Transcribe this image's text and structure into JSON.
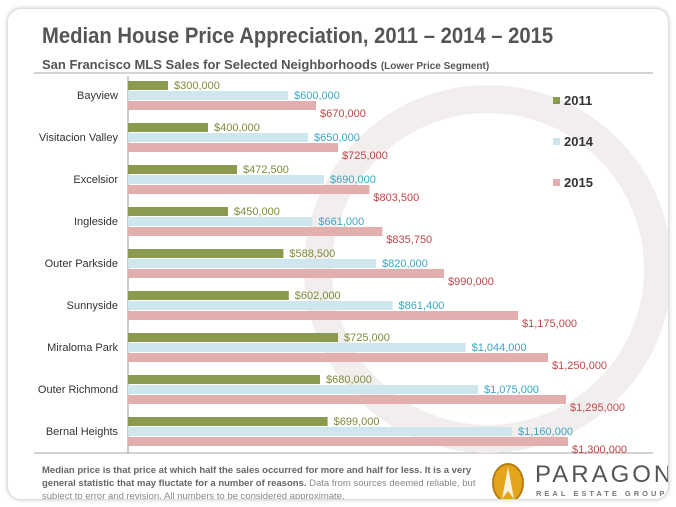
{
  "chart_data": {
    "type": "bar",
    "orientation": "horizontal",
    "title": "Median House Price Appreciation, 2011 – 2014 – 2015",
    "subtitle": "San Francisco MLS Sales for Selected Neighborhoods",
    "subtitle_note": "(Lower Price Segment)",
    "categories": [
      "Bayview",
      "Visitacion Valley",
      "Excelsior",
      "Ingleside",
      "Outer Parkside",
      "Sunnyside",
      "Miraloma Park",
      "Outer Richmond",
      "Bernal Heights"
    ],
    "series": [
      {
        "name": "2011",
        "color": "#8a9a4e",
        "values": [
          300000,
          400000,
          472500,
          450000,
          588500,
          602000,
          725000,
          680000,
          699000
        ],
        "labels": [
          "$300,000",
          "$400,000",
          "$472,500",
          "$450,000",
          "$588,500",
          "$602,000",
          "$725,000",
          "$680,000",
          "$699,000"
        ],
        "label_color": "#7d8c3a"
      },
      {
        "name": "2014",
        "color": "#cfe6ee",
        "values": [
          600000,
          650000,
          690000,
          661000,
          820000,
          861400,
          1044000,
          1075000,
          1160000
        ],
        "labels": [
          "$600,000",
          "$650,000",
          "$690,000",
          "$661,000",
          "$820,000",
          "$861,400",
          "$1,044,000",
          "$1,075,000",
          "$1,160,000"
        ],
        "label_color": "#3aa6c4"
      },
      {
        "name": "2015",
        "color": "#e3aeae",
        "values": [
          670000,
          725000,
          803500,
          835750,
          990000,
          1175000,
          1250000,
          1295000,
          1300000
        ],
        "labels": [
          "$670,000",
          "$725,000",
          "$803,500",
          "$835,750",
          "$990,000",
          "$1,175,000",
          "$1,250,000",
          "$1,295,000",
          "$1,300,000"
        ],
        "label_color": "#c0474a"
      }
    ],
    "xlim": [
      200000,
      1400000
    ],
    "grid": false,
    "legend": "right"
  },
  "footer": {
    "bold": "Median price is that price at which half the sales occurred for more and half for less.  It is a very general statistic  that may fluctate for a number of reasons.",
    "normal": " Data from sources deemed reliable, but subject to error and revision.  All numbers  to be considered approximate."
  },
  "logo": {
    "name": "PARAGON",
    "tagline": "REAL ESTATE GROUP"
  }
}
